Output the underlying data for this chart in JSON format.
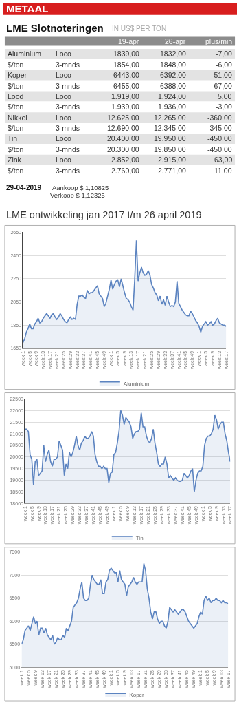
{
  "chart_data": [
    {
      "type": "other",
      "title": "LME Slotnoteringen",
      "subtitle": "IN US$ PER TON",
      "annotations": [
        "METAAL",
        "19-apr",
        "26-apr",
        "plus/min",
        "Aluminium",
        "Loco",
        "1839,00",
        "1832,00",
        "-7,00",
        "$/ton",
        "3-mnds",
        "1854,00",
        "1848,00",
        "-6,00",
        "Koper",
        "Loco",
        "6443,00",
        "6392,00",
        "-51,00",
        "$/ton",
        "3-mnds",
        "6455,00",
        "6388,00",
        "-67,00",
        "Lood",
        "Loco",
        "1.919,00",
        "1.924,00",
        "5,00",
        "$/ton",
        "3-mnds",
        "1.939,00",
        "1.936,00",
        "-3,00",
        "Nikkel",
        "Loco",
        "12.625,00",
        "12.265,00",
        "-360,00",
        "$/ton",
        "3-mnds",
        "12.690,00",
        "12.345,00",
        "-345,00",
        "Tin",
        "Loco",
        "20.400,00",
        "19.950,00",
        "-450,00",
        "$/ton",
        "3-mnds",
        "20.300,00",
        "19.850,00",
        "-450,00",
        "Zink",
        "Loco",
        "2.852,00",
        "2.915,00",
        "63,00",
        "$/ton",
        "3-mnds",
        "2.760,00",
        "2.771,00",
        "11,00",
        "29-04-2019",
        "Aankoop $ 1,10825",
        "Verkoop $ 1,12325"
      ]
    },
    {
      "type": "area",
      "title": "LME ontwikkeling jan 2017 t/m 26 april 2019",
      "ylim": [
        1650,
        2650
      ],
      "yticks": [
        1650,
        1850,
        2050,
        2250,
        2450,
        2650
      ],
      "grid": "y",
      "legend": "bottom",
      "categories": [
        "week 1",
        null,
        null,
        null,
        "week 5",
        null,
        null,
        null,
        "week 9",
        null,
        null,
        null,
        "week 13",
        null,
        null,
        null,
        "week 17",
        null,
        null,
        null,
        "week 21",
        null,
        null,
        null,
        "week 25",
        null,
        null,
        null,
        "week 29",
        null,
        null,
        null,
        "week 33",
        null,
        null,
        null,
        "week 37",
        null,
        null,
        null,
        "week 41",
        null,
        null,
        null,
        "week 45",
        null,
        null,
        null,
        "week 49",
        null,
        null,
        null,
        "week 1",
        null,
        null,
        null,
        "week 5",
        null,
        null,
        null,
        "week 9",
        null,
        null,
        null,
        "week 13",
        null,
        null,
        null,
        "week 17",
        null,
        null,
        null,
        "week 21",
        null,
        null,
        null,
        "week 25",
        null,
        null,
        null,
        "week 29",
        null,
        null,
        null,
        "week 33",
        null,
        null,
        null,
        "week 37",
        null,
        null,
        null,
        "week 41",
        null,
        null,
        null,
        "week 45",
        null,
        null,
        null,
        "week 49",
        null,
        null,
        null,
        "week 1",
        null,
        null,
        null,
        "week 5",
        null,
        null,
        null,
        "week 9",
        null,
        null,
        null,
        "week 13",
        null,
        null,
        null,
        "week 17"
      ],
      "series": [
        {
          "name": "Aluminium",
          "color": "#5b83c0",
          "values": [
            1700,
            1730,
            1790,
            1820,
            1860,
            1820,
            1820,
            1860,
            1880,
            1910,
            1870,
            1880,
            1910,
            1930,
            1950,
            1930,
            1910,
            1940,
            1950,
            1920,
            1900,
            1920,
            1950,
            1930,
            1900,
            1880,
            1870,
            1900,
            1920,
            1900,
            1910,
            1900,
            2030,
            2100,
            2100,
            2110,
            2090,
            2080,
            2150,
            2120,
            2130,
            2130,
            2150,
            2170,
            2190,
            2120,
            2100,
            2080,
            2010,
            2040,
            2100,
            2160,
            2240,
            2160,
            2200,
            2230,
            2240,
            2180,
            2250,
            2190,
            2130,
            2080,
            2070,
            2050,
            2010,
            1980,
            2250,
            2580,
            2230,
            2300,
            2350,
            2300,
            2280,
            2290,
            2320,
            2280,
            2200,
            2170,
            2130,
            2110,
            2060,
            2100,
            2030,
            2070,
            2020,
            2100,
            2050,
            2010,
            2020,
            2010,
            2050,
            2230,
            2040,
            2010,
            1980,
            1960,
            1940,
            1930,
            1930,
            1970,
            1950,
            1920,
            1890,
            1870,
            1840,
            1790,
            1840,
            1860,
            1880,
            1850,
            1860,
            1880,
            1850,
            1860,
            1890,
            1910,
            1870,
            1860,
            1850,
            1850,
            1840
          ]
        }
      ]
    },
    {
      "type": "area",
      "ylim": [
        18000,
        22500
      ],
      "yticks": [
        18000,
        18500,
        19000,
        19500,
        20000,
        20500,
        21000,
        21500,
        22000,
        22500
      ],
      "grid": "y",
      "legend": "bottom",
      "categories": [
        "week 1",
        null,
        null,
        null,
        "week 5",
        null,
        null,
        null,
        "week 9",
        null,
        null,
        null,
        "week 13",
        null,
        null,
        null,
        "week 17",
        null,
        null,
        null,
        "week 21",
        null,
        null,
        null,
        "week 25",
        null,
        null,
        null,
        "week 29",
        null,
        null,
        null,
        "week 33",
        null,
        null,
        null,
        "week 37",
        null,
        null,
        null,
        "week 41",
        null,
        null,
        null,
        "week 45",
        null,
        null,
        null,
        "week 49",
        null,
        null,
        null,
        "week 1",
        null,
        null,
        null,
        "week 5",
        null,
        null,
        null,
        "week 9",
        null,
        null,
        null,
        "week 13",
        null,
        null,
        null,
        "week 17",
        null,
        null,
        null,
        "week 21",
        null,
        null,
        null,
        "week 25",
        null,
        null,
        null,
        "week 29",
        null,
        null,
        null,
        "week 33",
        null,
        null,
        null,
        "week 37",
        null,
        null,
        null,
        "week 41",
        null,
        null,
        null,
        "week 45",
        null,
        null,
        null,
        "week 49",
        null,
        null,
        null,
        "week 1",
        null,
        null,
        null,
        "week 5",
        null,
        null,
        null,
        "week 9",
        null,
        null,
        null,
        "week 13",
        null,
        null,
        null,
        "week 17"
      ],
      "series": [
        {
          "name": "Tin",
          "color": "#5b83c0",
          "values": [
            21200,
            21200,
            21100,
            20100,
            19900,
            18800,
            19800,
            19900,
            19200,
            19300,
            19400,
            20500,
            19800,
            20100,
            20300,
            19800,
            19600,
            19900,
            19900,
            20000,
            20700,
            20500,
            20300,
            19200,
            19700,
            19500,
            20200,
            20000,
            20200,
            20500,
            20900,
            20500,
            20300,
            20600,
            20700,
            20900,
            20800,
            20800,
            20900,
            21100,
            20900,
            20100,
            19800,
            19600,
            19600,
            19500,
            19600,
            19500,
            19500,
            18900,
            19300,
            19350,
            20100,
            20200,
            20600,
            21100,
            22000,
            21800,
            21400,
            21700,
            21600,
            21500,
            21300,
            20800,
            21000,
            21100,
            21100,
            21200,
            21900,
            21300,
            21300,
            20900,
            20700,
            20600,
            20800,
            21200,
            20600,
            20200,
            19700,
            19600,
            19700,
            19700,
            20000,
            19700,
            19100,
            19200,
            19100,
            19000,
            19100,
            19000,
            18950,
            18950,
            19000,
            19300,
            19200,
            19100,
            19200,
            19400,
            19500,
            18500,
            19000,
            19300,
            19400,
            19400,
            19600,
            20500,
            20800,
            20900,
            20900,
            21000,
            21200,
            21800,
            21600,
            21200,
            21400,
            21500,
            21500,
            21000,
            20700,
            20200,
            19800
          ]
        }
      ]
    },
    {
      "type": "area",
      "ylim": [
        5000,
        7500
      ],
      "yticks": [
        5000,
        5500,
        6000,
        6500,
        7000,
        7500
      ],
      "grid": "y",
      "legend": "bottom",
      "categories": [
        "week 1",
        null,
        null,
        null,
        "week 5",
        null,
        null,
        null,
        "week 9",
        null,
        null,
        null,
        "week 13",
        null,
        null,
        null,
        "week 17",
        null,
        null,
        null,
        "week 21",
        null,
        null,
        null,
        "week 25",
        null,
        null,
        null,
        "week 29",
        null,
        null,
        null,
        "week 33",
        null,
        null,
        null,
        "week 37",
        null,
        null,
        null,
        "week 41",
        null,
        null,
        null,
        "week 45",
        null,
        null,
        null,
        "week 49",
        null,
        null,
        null,
        "week 1",
        null,
        null,
        null,
        "week 5",
        null,
        null,
        null,
        "week 9",
        null,
        null,
        null,
        "week 13",
        null,
        null,
        null,
        "week 17",
        null,
        null,
        null,
        "week 21",
        null,
        null,
        null,
        "week 25",
        null,
        null,
        null,
        "week 29",
        null,
        null,
        null,
        "week 33",
        null,
        null,
        null,
        "week 37",
        null,
        null,
        null,
        "week 41",
        null,
        null,
        null,
        "week 45",
        null,
        null,
        null,
        "week 49",
        null,
        null,
        null,
        "week 1",
        null,
        null,
        null,
        "week 5",
        null,
        null,
        null,
        "week 9",
        null,
        null,
        null,
        "week 13",
        null,
        null,
        null,
        "week 17"
      ],
      "series": [
        {
          "name": "Koper",
          "color": "#5b83c0",
          "values": [
            5500,
            5600,
            5800,
            5850,
            5900,
            5800,
            5950,
            6100,
            5950,
            6000,
            5700,
            5850,
            5850,
            5750,
            5850,
            5700,
            5650,
            5600,
            5700,
            5500,
            5550,
            5650,
            5600,
            5600,
            5700,
            5650,
            5850,
            5800,
            5900,
            6000,
            6300,
            6350,
            6400,
            6500,
            6700,
            6850,
            6500,
            6450,
            6450,
            6500,
            6800,
            7000,
            6900,
            6850,
            6800,
            6800,
            6900,
            6600,
            6600,
            6850,
            6900,
            7100,
            7150,
            7100,
            7050,
            7050,
            6850,
            7100,
            6900,
            6850,
            6800,
            6550,
            6750,
            6800,
            6850,
            6950,
            6850,
            6800,
            6850,
            6850,
            6850,
            7250,
            7100,
            6700,
            6500,
            6200,
            6050,
            6200,
            6200,
            6050,
            5950,
            6000,
            6000,
            5900,
            5850,
            6000,
            6300,
            6250,
            6200,
            6250,
            6200,
            6150,
            6200,
            6250,
            6250,
            6200,
            6100,
            6000,
            5950,
            5900,
            5850,
            5900,
            5950,
            6100,
            6200,
            6150,
            6450,
            6550,
            6450,
            6500,
            6400,
            6450,
            6450,
            6500,
            6450,
            6450,
            6400,
            6450,
            6400,
            6400,
            6380
          ]
        }
      ]
    }
  ]
}
